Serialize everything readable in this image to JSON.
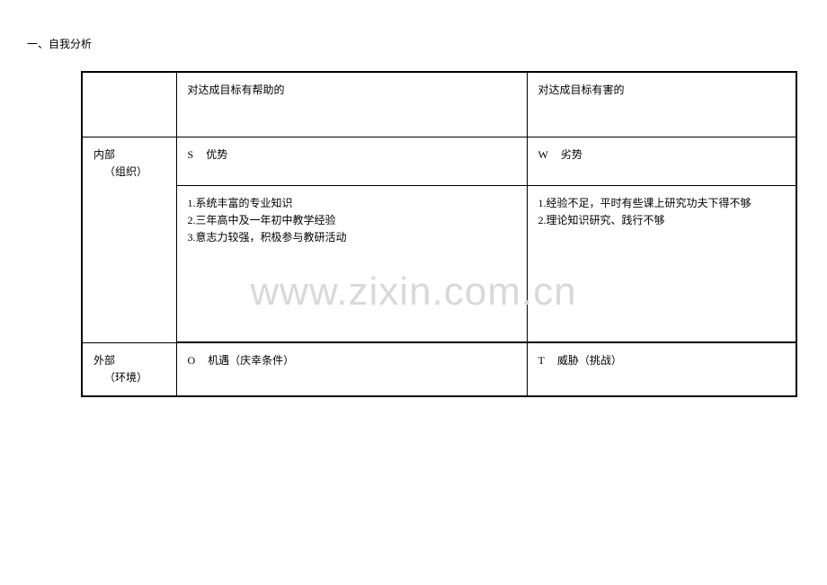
{
  "title": "一、自我分析",
  "watermark": "www.zixin.com.cn",
  "table": {
    "header": {
      "col1": "",
      "col2": "对达成目标有帮助的",
      "col3": "对达成目标有害的"
    },
    "internal": {
      "label_main": "内部",
      "label_sub": "（组织）",
      "s_letter": "S",
      "s_label": "优势",
      "w_letter": "W",
      "w_label": "劣势",
      "s_item1": "1.系统丰富的专业知识",
      "s_item2": "2.三年高中及一年初中教学经验",
      "s_item3": "3.意志力较强，积极参与教研活动",
      "w_item1": "1.经验不足，平时有些课上研究功夫下得不够",
      "w_item2": "2.理论知识研究、践行不够"
    },
    "external": {
      "label_main": "外部",
      "label_sub": "（环境）",
      "o_letter": "O",
      "o_label": "机遇（庆幸条件）",
      "t_letter": "T",
      "t_label": "威胁（挑战）"
    }
  }
}
